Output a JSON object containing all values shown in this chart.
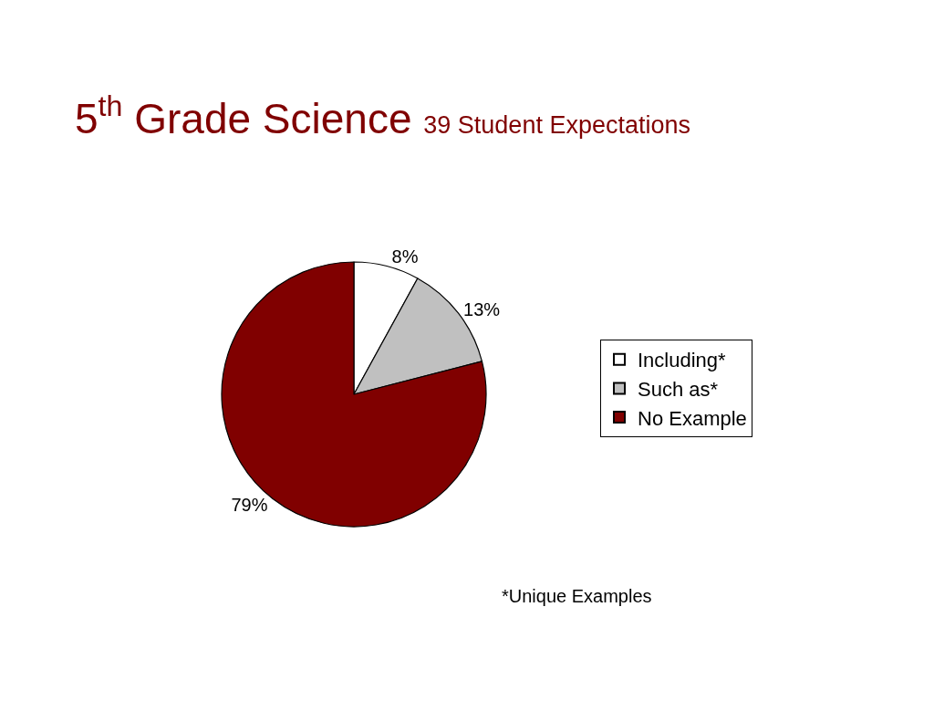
{
  "chart_data": {
    "type": "pie",
    "title": "5$^{th}$ Grade Science",
    "subtitle": "39 Student Expectations",
    "categories": [
      "Including*",
      "Such as*",
      "No Example"
    ],
    "values": [
      8,
      13,
      79
    ],
    "value_labels": [
      "8%",
      "13%",
      "79%"
    ],
    "colors": [
      "#ffffff",
      "#c0c0c0",
      "#800000"
    ],
    "legend": "right",
    "annotations": [
      "*Unique Examples"
    ]
  }
}
